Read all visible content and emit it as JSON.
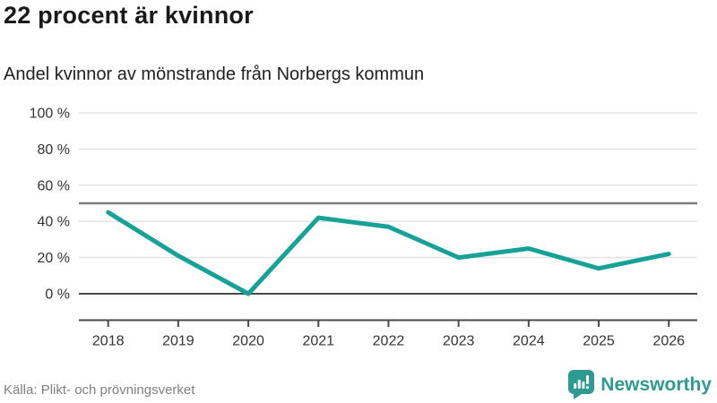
{
  "header": {
    "title": "22 procent är kvinnor",
    "subtitle": "Andel kvinnor av mönstrande från Norbergs kommun"
  },
  "footer": {
    "source": "Källa: Plikt- och prövningsverket",
    "brand_name": "Newsworthy",
    "brand_icon": "bar-chart-speech-bubble-icon"
  },
  "colors": {
    "line": "#17a297",
    "grid": "#e4e4e4",
    "reference_line": "#7d7d7d",
    "axis": "#4a4a4a",
    "tick_label": "#333333",
    "title": "#1a1a1a",
    "muted": "#808080",
    "brand": "#2f9a92"
  },
  "chart_data": {
    "type": "line",
    "title": "22 procent är kvinnor",
    "subtitle": "Andel kvinnor av mönstrande från Norbergs kommun",
    "x": [
      "2018",
      "2019",
      "2020",
      "2021",
      "2022",
      "2023",
      "2024",
      "2025",
      "2026"
    ],
    "series": [
      {
        "name": "Andel kvinnor av mönstrande",
        "color": "#17a297",
        "values": [
          45,
          21,
          0,
          42,
          37,
          20,
          25,
          14,
          22
        ]
      }
    ],
    "xlabel": "",
    "ylabel": "",
    "ylim": [
      0,
      100
    ],
    "yticks": [
      0,
      20,
      40,
      60,
      80,
      100
    ],
    "ytick_suffix": " %",
    "reference_line_y": 50,
    "grid": true,
    "legend": false,
    "source": "Källa: Plikt- och prövningsverket"
  }
}
